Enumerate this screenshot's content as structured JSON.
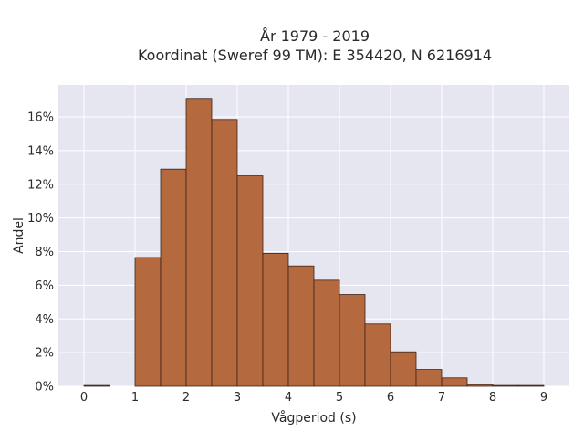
{
  "chart_data": {
    "type": "bar",
    "title_line1": "År 1979 - 2019",
    "title_line2": "Koordinat (Sweref 99 TM): E 354420, N 6216914",
    "xlabel": "Vågperiod (s)",
    "ylabel": "Andel",
    "x_ticks": [
      0,
      1,
      2,
      3,
      4,
      5,
      6,
      7,
      8,
      9
    ],
    "y_ticks": [
      0,
      2,
      4,
      6,
      8,
      10,
      12,
      14,
      16
    ],
    "y_tick_labels": [
      "0%",
      "2%",
      "4%",
      "6%",
      "8%",
      "10%",
      "12%",
      "14%",
      "16%"
    ],
    "xlim": [
      -0.5,
      9.5
    ],
    "ylim": [
      0,
      17.9
    ],
    "bin_width": 0.5,
    "bins": [
      {
        "x0": 0.0,
        "x1": 0.5,
        "value": 0.05
      },
      {
        "x0": 1.0,
        "x1": 1.5,
        "value": 7.65
      },
      {
        "x0": 1.5,
        "x1": 2.0,
        "value": 12.9
      },
      {
        "x0": 2.0,
        "x1": 2.5,
        "value": 17.1
      },
      {
        "x0": 2.5,
        "x1": 3.0,
        "value": 15.85
      },
      {
        "x0": 3.0,
        "x1": 3.5,
        "value": 12.5
      },
      {
        "x0": 3.5,
        "x1": 4.0,
        "value": 7.9
      },
      {
        "x0": 4.0,
        "x1": 4.5,
        "value": 7.15
      },
      {
        "x0": 4.5,
        "x1": 5.0,
        "value": 6.3
      },
      {
        "x0": 5.0,
        "x1": 5.5,
        "value": 5.45
      },
      {
        "x0": 5.5,
        "x1": 6.0,
        "value": 3.7
      },
      {
        "x0": 6.0,
        "x1": 6.5,
        "value": 2.05
      },
      {
        "x0": 6.5,
        "x1": 7.0,
        "value": 1.0
      },
      {
        "x0": 7.0,
        "x1": 7.5,
        "value": 0.5
      },
      {
        "x0": 7.5,
        "x1": 8.0,
        "value": 0.1
      },
      {
        "x0": 8.0,
        "x1": 8.5,
        "value": 0.05
      },
      {
        "x0": 8.5,
        "x1": 9.0,
        "value": 0.05
      }
    ],
    "grid": true,
    "colors": {
      "bar_fill": "#b5693f",
      "bar_edge": "#3b2418",
      "plot_bg": "#e5e6f0",
      "grid": "#ffffff"
    }
  }
}
